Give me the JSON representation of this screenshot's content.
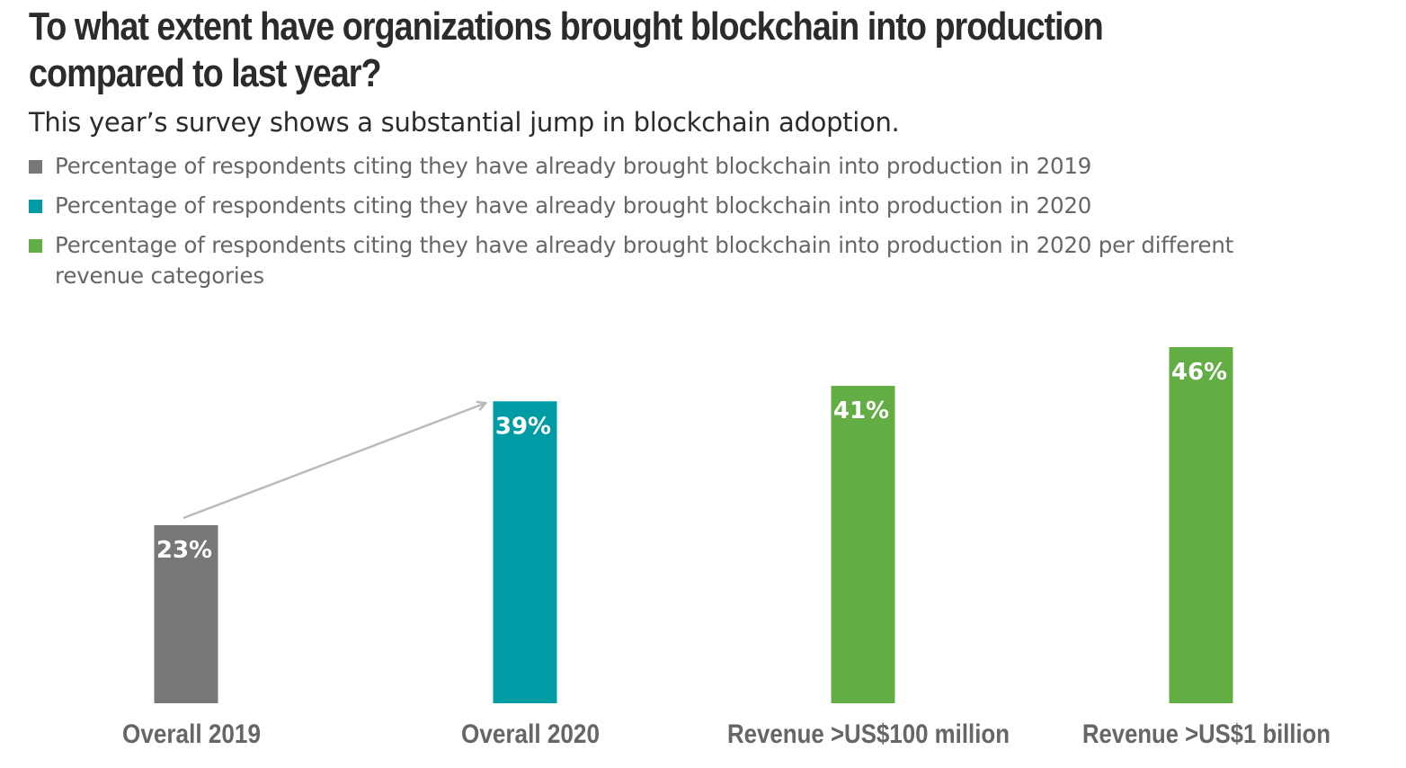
{
  "chart_data": {
    "type": "bar",
    "title": "To what extent have organizations brought blockchain into production compared to last year?",
    "subtitle": "This year’s survey shows a substantial jump in blockchain adoption.",
    "categories": [
      "Overall 2019",
      "Overall 2020",
      "Revenue >US$100 million",
      "Revenue >US$1 billion"
    ],
    "values": [
      23,
      39,
      41,
      46
    ],
    "value_labels": [
      "23%",
      "39%",
      "41%",
      "46%"
    ],
    "colors": [
      "#77777a",
      "#009ca6",
      "#62ad44",
      "#62ad44"
    ],
    "legend": [
      {
        "label": "Percentage of respondents citing they have already brought blockchain into production in 2019",
        "color": "#77777a"
      },
      {
        "label": "Percentage of respondents citing they have already brought blockchain into production in 2020",
        "color": "#009ca6"
      },
      {
        "label": "Percentage of respondents citing they have already brought blockchain into production in 2020 per different revenue categories",
        "color": "#62ad44"
      }
    ],
    "annotation": "arrow from Overall 2019 to Overall 2020",
    "arrow_color": "#b8bcbc",
    "ylim": [
      0,
      46
    ],
    "xlabel": "",
    "ylabel": "",
    "grid": false,
    "legend_position": "top-left"
  }
}
